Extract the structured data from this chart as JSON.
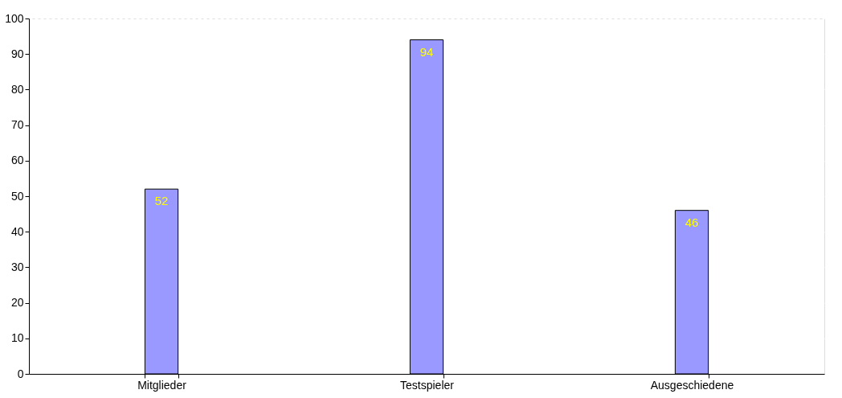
{
  "chart_data": {
    "type": "bar",
    "categories": [
      "Mitglieder",
      "Testspieler",
      "Ausgeschiedene"
    ],
    "values": [
      52,
      94,
      46
    ],
    "color": "#9999ff",
    "ylim": [
      0,
      100
    ],
    "yticks": [
      0,
      10,
      20,
      30,
      40,
      50,
      60,
      70,
      80,
      90,
      100
    ],
    "grid": "y",
    "data_labels": true
  }
}
